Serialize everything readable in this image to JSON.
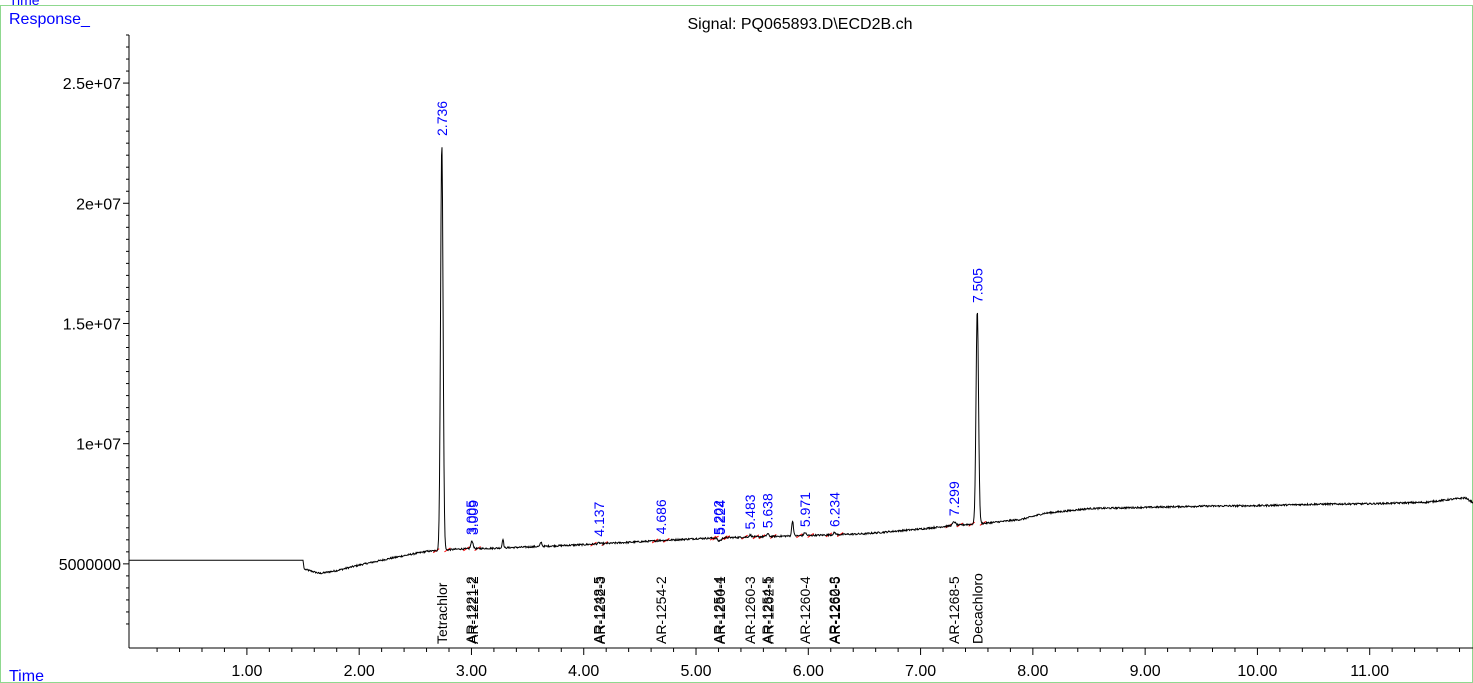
{
  "top_left_label": "Time",
  "y_corner_label": "Response_",
  "x_corner_label": "Time",
  "chart_data": {
    "type": "line",
    "title": "Signal: PQ065893.D\\ECD2B.ch",
    "xlabel": "Time",
    "ylabel": "Response_",
    "xlim": [
      -0.05,
      11.92
    ],
    "ylim": [
      1500000,
      27000000
    ],
    "x_ticks": [
      1.0,
      2.0,
      3.0,
      4.0,
      5.0,
      6.0,
      7.0,
      8.0,
      9.0,
      10.0,
      11.0
    ],
    "x_tick_labels": [
      "1.00",
      "2.00",
      "3.00",
      "4.00",
      "5.00",
      "6.00",
      "7.00",
      "8.00",
      "9.00",
      "10.00",
      "11.00"
    ],
    "y_ticks": [
      5000000,
      10000000,
      15000000,
      20000000,
      25000000
    ],
    "y_tick_labels": [
      "5000000",
      "1e+07",
      "1.5e+07",
      "2e+07",
      "2.5e+07"
    ],
    "series": [
      {
        "color": "#000000",
        "baseline": [
          [
            -0.05,
            5150000
          ],
          [
            1.5,
            5150000
          ],
          [
            1.51,
            4780000
          ],
          [
            1.65,
            4600000
          ],
          [
            1.8,
            4720000
          ],
          [
            2.0,
            4950000
          ],
          [
            2.3,
            5250000
          ],
          [
            2.6,
            5520000
          ],
          [
            2.9,
            5620000
          ],
          [
            3.2,
            5650000
          ],
          [
            3.6,
            5720000
          ],
          [
            4.0,
            5800000
          ],
          [
            4.5,
            5920000
          ],
          [
            5.0,
            6050000
          ],
          [
            5.5,
            6120000
          ],
          [
            6.0,
            6180000
          ],
          [
            6.5,
            6250000
          ],
          [
            7.0,
            6450000
          ],
          [
            7.3,
            6600000
          ],
          [
            7.6,
            6700000
          ],
          [
            7.9,
            6850000
          ],
          [
            8.1,
            7100000
          ],
          [
            8.5,
            7300000
          ],
          [
            9.0,
            7350000
          ],
          [
            9.5,
            7400000
          ],
          [
            10.0,
            7420000
          ],
          [
            10.5,
            7480000
          ],
          [
            11.0,
            7500000
          ],
          [
            11.5,
            7560000
          ],
          [
            11.85,
            7750000
          ],
          [
            11.92,
            7550000
          ]
        ],
        "peaks": [
          {
            "rt": 2.736,
            "height": 22550000,
            "width": 0.022
          },
          {
            "rt": 3.005,
            "height": 5950000,
            "width": 0.02
          },
          {
            "rt": 3.28,
            "height": 6050000,
            "width": 0.012
          },
          {
            "rt": 3.62,
            "height": 5900000,
            "width": 0.015
          },
          {
            "rt": 4.137,
            "height": 5880000,
            "width": 0.02
          },
          {
            "rt": 4.686,
            "height": 5980000,
            "width": 0.02
          },
          {
            "rt": 5.202,
            "height": 5950000,
            "width": 0.02
          },
          {
            "rt": 5.224,
            "height": 6000000,
            "width": 0.015
          },
          {
            "rt": 5.483,
            "height": 6200000,
            "width": 0.02
          },
          {
            "rt": 5.638,
            "height": 6250000,
            "width": 0.02
          },
          {
            "rt": 5.86,
            "height": 6800000,
            "width": 0.015
          },
          {
            "rt": 5.971,
            "height": 6300000,
            "width": 0.02
          },
          {
            "rt": 6.234,
            "height": 6300000,
            "width": 0.02
          },
          {
            "rt": 7.299,
            "height": 6750000,
            "width": 0.025
          },
          {
            "rt": 7.505,
            "height": 15600000,
            "width": 0.022
          }
        ]
      }
    ],
    "peak_labels": [
      {
        "rt": 2.736,
        "text": "2.736",
        "y": 22550000
      },
      {
        "rt": 2.995,
        "text": "3.005",
        "y": 5950000
      },
      {
        "rt": 3.015,
        "text": "3.009",
        "y": 5950000
      },
      {
        "rt": 4.137,
        "text": "4.137",
        "y": 5880000
      },
      {
        "rt": 4.686,
        "text": "4.686",
        "y": 5980000
      },
      {
        "rt": 5.202,
        "text": "5.202",
        "y": 5950000
      },
      {
        "rt": 5.214,
        "text": "5.224",
        "y": 5950000
      },
      {
        "rt": 5.483,
        "text": "5.483",
        "y": 6180000
      },
      {
        "rt": 5.638,
        "text": "5.638",
        "y": 6230000
      },
      {
        "rt": 5.971,
        "text": "5.971",
        "y": 6280000
      },
      {
        "rt": 6.234,
        "text": "6.234",
        "y": 6280000
      },
      {
        "rt": 7.299,
        "text": "7.299",
        "y": 6730000
      },
      {
        "rt": 7.505,
        "text": "7.505",
        "y": 15600000
      }
    ],
    "compound_labels": [
      {
        "rt": 2.736,
        "text": "Tetrachlor"
      },
      {
        "rt": 2.995,
        "text": "AR-1221-2"
      },
      {
        "rt": 3.015,
        "text": "AR-1221-2"
      },
      {
        "rt": 4.13,
        "text": "AR-1248-5"
      },
      {
        "rt": 4.145,
        "text": "AR-1232-3"
      },
      {
        "rt": 4.686,
        "text": "AR-1254-2"
      },
      {
        "rt": 5.202,
        "text": "AR-1254-4"
      },
      {
        "rt": 5.215,
        "text": "AR-1260-1"
      },
      {
        "rt": 5.483,
        "text": "AR-1260-3"
      },
      {
        "rt": 5.632,
        "text": "AR-1254-5"
      },
      {
        "rt": 5.645,
        "text": "AR-1262-1"
      },
      {
        "rt": 5.971,
        "text": "AR-1260-4"
      },
      {
        "rt": 6.228,
        "text": "AR-1262-3"
      },
      {
        "rt": 6.24,
        "text": "AR-1260-5"
      },
      {
        "rt": 7.299,
        "text": "AR-1268-5"
      },
      {
        "rt": 7.505,
        "text": "Decachloro"
      }
    ]
  }
}
